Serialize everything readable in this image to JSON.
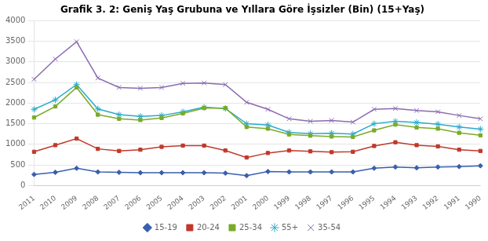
{
  "chart_data": {
    "type": "line",
    "title": "Grafik 3. 2: Geniş Yaş Grubuna ve Yıllara Göre İşsizler (Bin) (15+Yaş)",
    "categories": [
      "2011",
      "2010",
      "2009",
      "2008",
      "2007",
      "2006",
      "2005",
      "2004",
      "2003",
      "2002",
      "2001",
      "2000",
      "1999",
      "1998",
      "1997",
      "1996",
      "1995",
      "1994",
      "1993",
      "1992",
      "1991",
      "1990"
    ],
    "series": [
      {
        "name": "15-19",
        "color": "#3A5FAD",
        "marker": "diamond",
        "values": [
          270,
          320,
          420,
          330,
          320,
          310,
          310,
          310,
          310,
          300,
          240,
          340,
          330,
          330,
          330,
          330,
          420,
          450,
          430,
          450,
          460,
          480
        ]
      },
      {
        "name": "20-24",
        "color": "#C0392B",
        "marker": "square",
        "values": [
          820,
          980,
          1140,
          890,
          840,
          870,
          940,
          970,
          970,
          850,
          680,
          790,
          850,
          830,
          810,
          820,
          960,
          1050,
          980,
          950,
          870,
          840
        ]
      },
      {
        "name": "25-34",
        "color": "#7AAB28",
        "marker": "square",
        "values": [
          1650,
          1920,
          2380,
          1720,
          1620,
          1590,
          1640,
          1750,
          1880,
          1880,
          1420,
          1380,
          1240,
          1210,
          1190,
          1180,
          1340,
          1480,
          1410,
          1380,
          1280,
          1220
        ]
      },
      {
        "name": "55+",
        "color": "#2AABCC",
        "marker": "star",
        "values": [
          1850,
          2080,
          2450,
          1860,
          1720,
          1680,
          1700,
          1790,
          1900,
          1870,
          1500,
          1470,
          1290,
          1260,
          1270,
          1250,
          1500,
          1560,
          1530,
          1490,
          1420,
          1370
        ]
      },
      {
        "name": "35-54",
        "color": "#8B6BB1",
        "marker": "x",
        "values": [
          2580,
          3070,
          3490,
          2610,
          2380,
          2360,
          2380,
          2480,
          2490,
          2450,
          2020,
          1850,
          1620,
          1560,
          1580,
          1540,
          1850,
          1870,
          1820,
          1790,
          1700,
          1620
        ]
      }
    ],
    "ylim": [
      0,
      4000
    ],
    "yticks": [
      0,
      500,
      1000,
      1500,
      2000,
      2500,
      3000,
      3500,
      4000
    ],
    "grid": "y",
    "legend": "bottom"
  }
}
